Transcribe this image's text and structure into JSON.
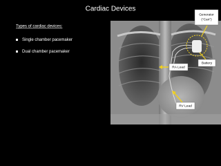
{
  "slide": {
    "title": "Cardiac Devices",
    "list": {
      "heading": "Types of cardiac devices:",
      "items": [
        "Single chamber pacemaker",
        "Dual chamber pacemaker"
      ]
    },
    "image_labels": {
      "generator": [
        "Generator",
        "(“Can”)"
      ],
      "battery": "Battery",
      "ra_lead": "RA Lead",
      "rv_lead": "RV Lead"
    }
  }
}
